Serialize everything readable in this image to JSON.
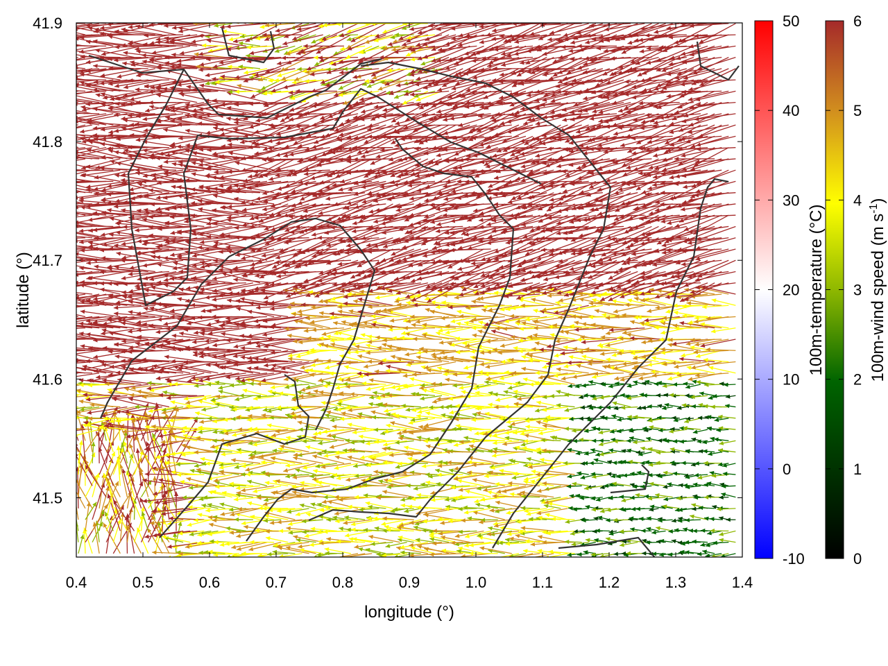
{
  "chart_data": {
    "type": "vector-field",
    "title": "",
    "xlabel": "longitude (°)",
    "ylabel": "latitude (°)",
    "xlim": [
      0.4,
      1.4
    ],
    "ylim": [
      41.45,
      41.9
    ],
    "x_ticks": [
      "0.4",
      "0.5",
      "0.6",
      "0.7",
      "0.8",
      "0.9",
      "1.0",
      "1.1",
      "1.2",
      "1.3",
      "1.4"
    ],
    "y_ticks": [
      "41.5",
      "41.6",
      "41.7",
      "41.8",
      "41.9"
    ],
    "colorbars": [
      {
        "label": "100m-temperature (°C)",
        "range": [
          -10,
          50
        ],
        "ticks": [
          "-10",
          "0",
          "10",
          "20",
          "30",
          "40",
          "50"
        ],
        "colors": [
          "#0000ff",
          "#ffffff",
          "#ff0000"
        ]
      },
      {
        "label": "100m-wind speed (m s-1)",
        "label_main": "100m-wind speed (m s",
        "label_sup": "-1",
        "label_end": ")",
        "range": [
          0,
          6
        ],
        "ticks": [
          "0",
          "1",
          "2",
          "3",
          "4",
          "5",
          "6"
        ],
        "colors": [
          "#000000",
          "#006400",
          "#8fb800",
          "#ffff00",
          "#d2901e",
          "#a52a2a"
        ]
      }
    ],
    "wind_regions": [
      {
        "name": "northwest",
        "lon": [
          0.4,
          0.7
        ],
        "lat": [
          41.62,
          41.9
        ],
        "speed_ms": 6,
        "direction": "from east"
      },
      {
        "name": "north-center",
        "lon": [
          0.7,
          1.2
        ],
        "lat": [
          41.68,
          41.9
        ],
        "speed_ms": 6,
        "direction": "from east-southeast"
      },
      {
        "name": "center",
        "lon": [
          0.75,
          1.15
        ],
        "lat": [
          41.55,
          41.68
        ],
        "speed_ms": 4,
        "direction": "from east"
      },
      {
        "name": "southwest",
        "lon": [
          0.4,
          0.7
        ],
        "lat": [
          41.45,
          41.6
        ],
        "speed_ms": 3.5,
        "direction": "mixed"
      },
      {
        "name": "southeast",
        "lon": [
          1.15,
          1.4
        ],
        "lat": [
          41.45,
          41.62
        ],
        "speed_ms": 1.5,
        "direction": "from east"
      }
    ]
  },
  "colors": {
    "speed_0": "#000000",
    "speed_1": "#004000",
    "speed_2": "#006400",
    "speed_3": "#8fb800",
    "speed_4": "#ffff00",
    "speed_5": "#d2901e",
    "speed_6": "#a52a2a",
    "contour": "#333333",
    "frame": "#000000"
  }
}
